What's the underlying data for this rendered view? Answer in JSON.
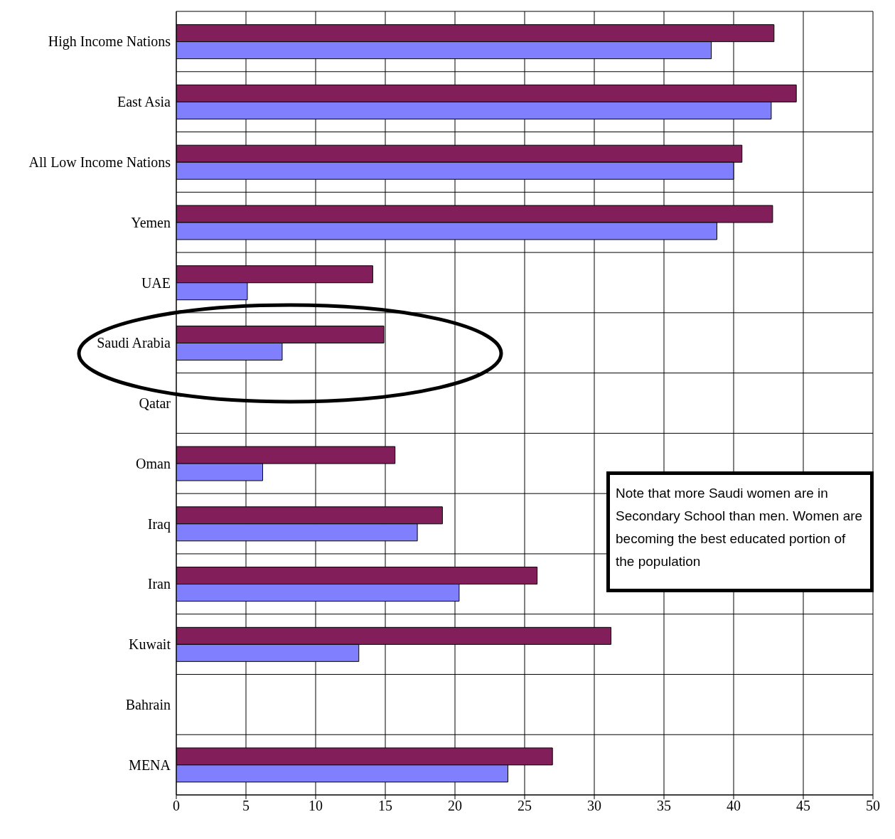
{
  "chart_data": {
    "type": "bar",
    "orientation": "horizontal",
    "categories": [
      "High Income Nations",
      "East Asia",
      "All Low Income Nations",
      "Yemen",
      "UAE",
      "Saudi Arabia",
      "Qatar",
      "Oman",
      "Iraq",
      "Iran",
      "Kuwait",
      "Bahrain",
      "MENA"
    ],
    "series": [
      {
        "color": "#821f5b",
        "values": [
          42.9,
          44.5,
          40.6,
          42.8,
          14.1,
          14.9,
          null,
          15.7,
          19.1,
          25.9,
          31.2,
          null,
          27.0
        ]
      },
      {
        "color": "#8080ff",
        "values": [
          38.4,
          42.7,
          40.0,
          38.8,
          5.1,
          7.6,
          null,
          6.2,
          17.3,
          20.3,
          13.1,
          null,
          23.8
        ]
      }
    ],
    "xlim": [
      0,
      50
    ],
    "xticks": [
      0,
      5,
      10,
      15,
      20,
      25,
      30,
      35,
      40,
      45,
      50
    ],
    "grid": true,
    "annotations": [
      "Note that more Saudi women are in Secondary School than men. Women are becoming the best educated portion of the population"
    ]
  }
}
